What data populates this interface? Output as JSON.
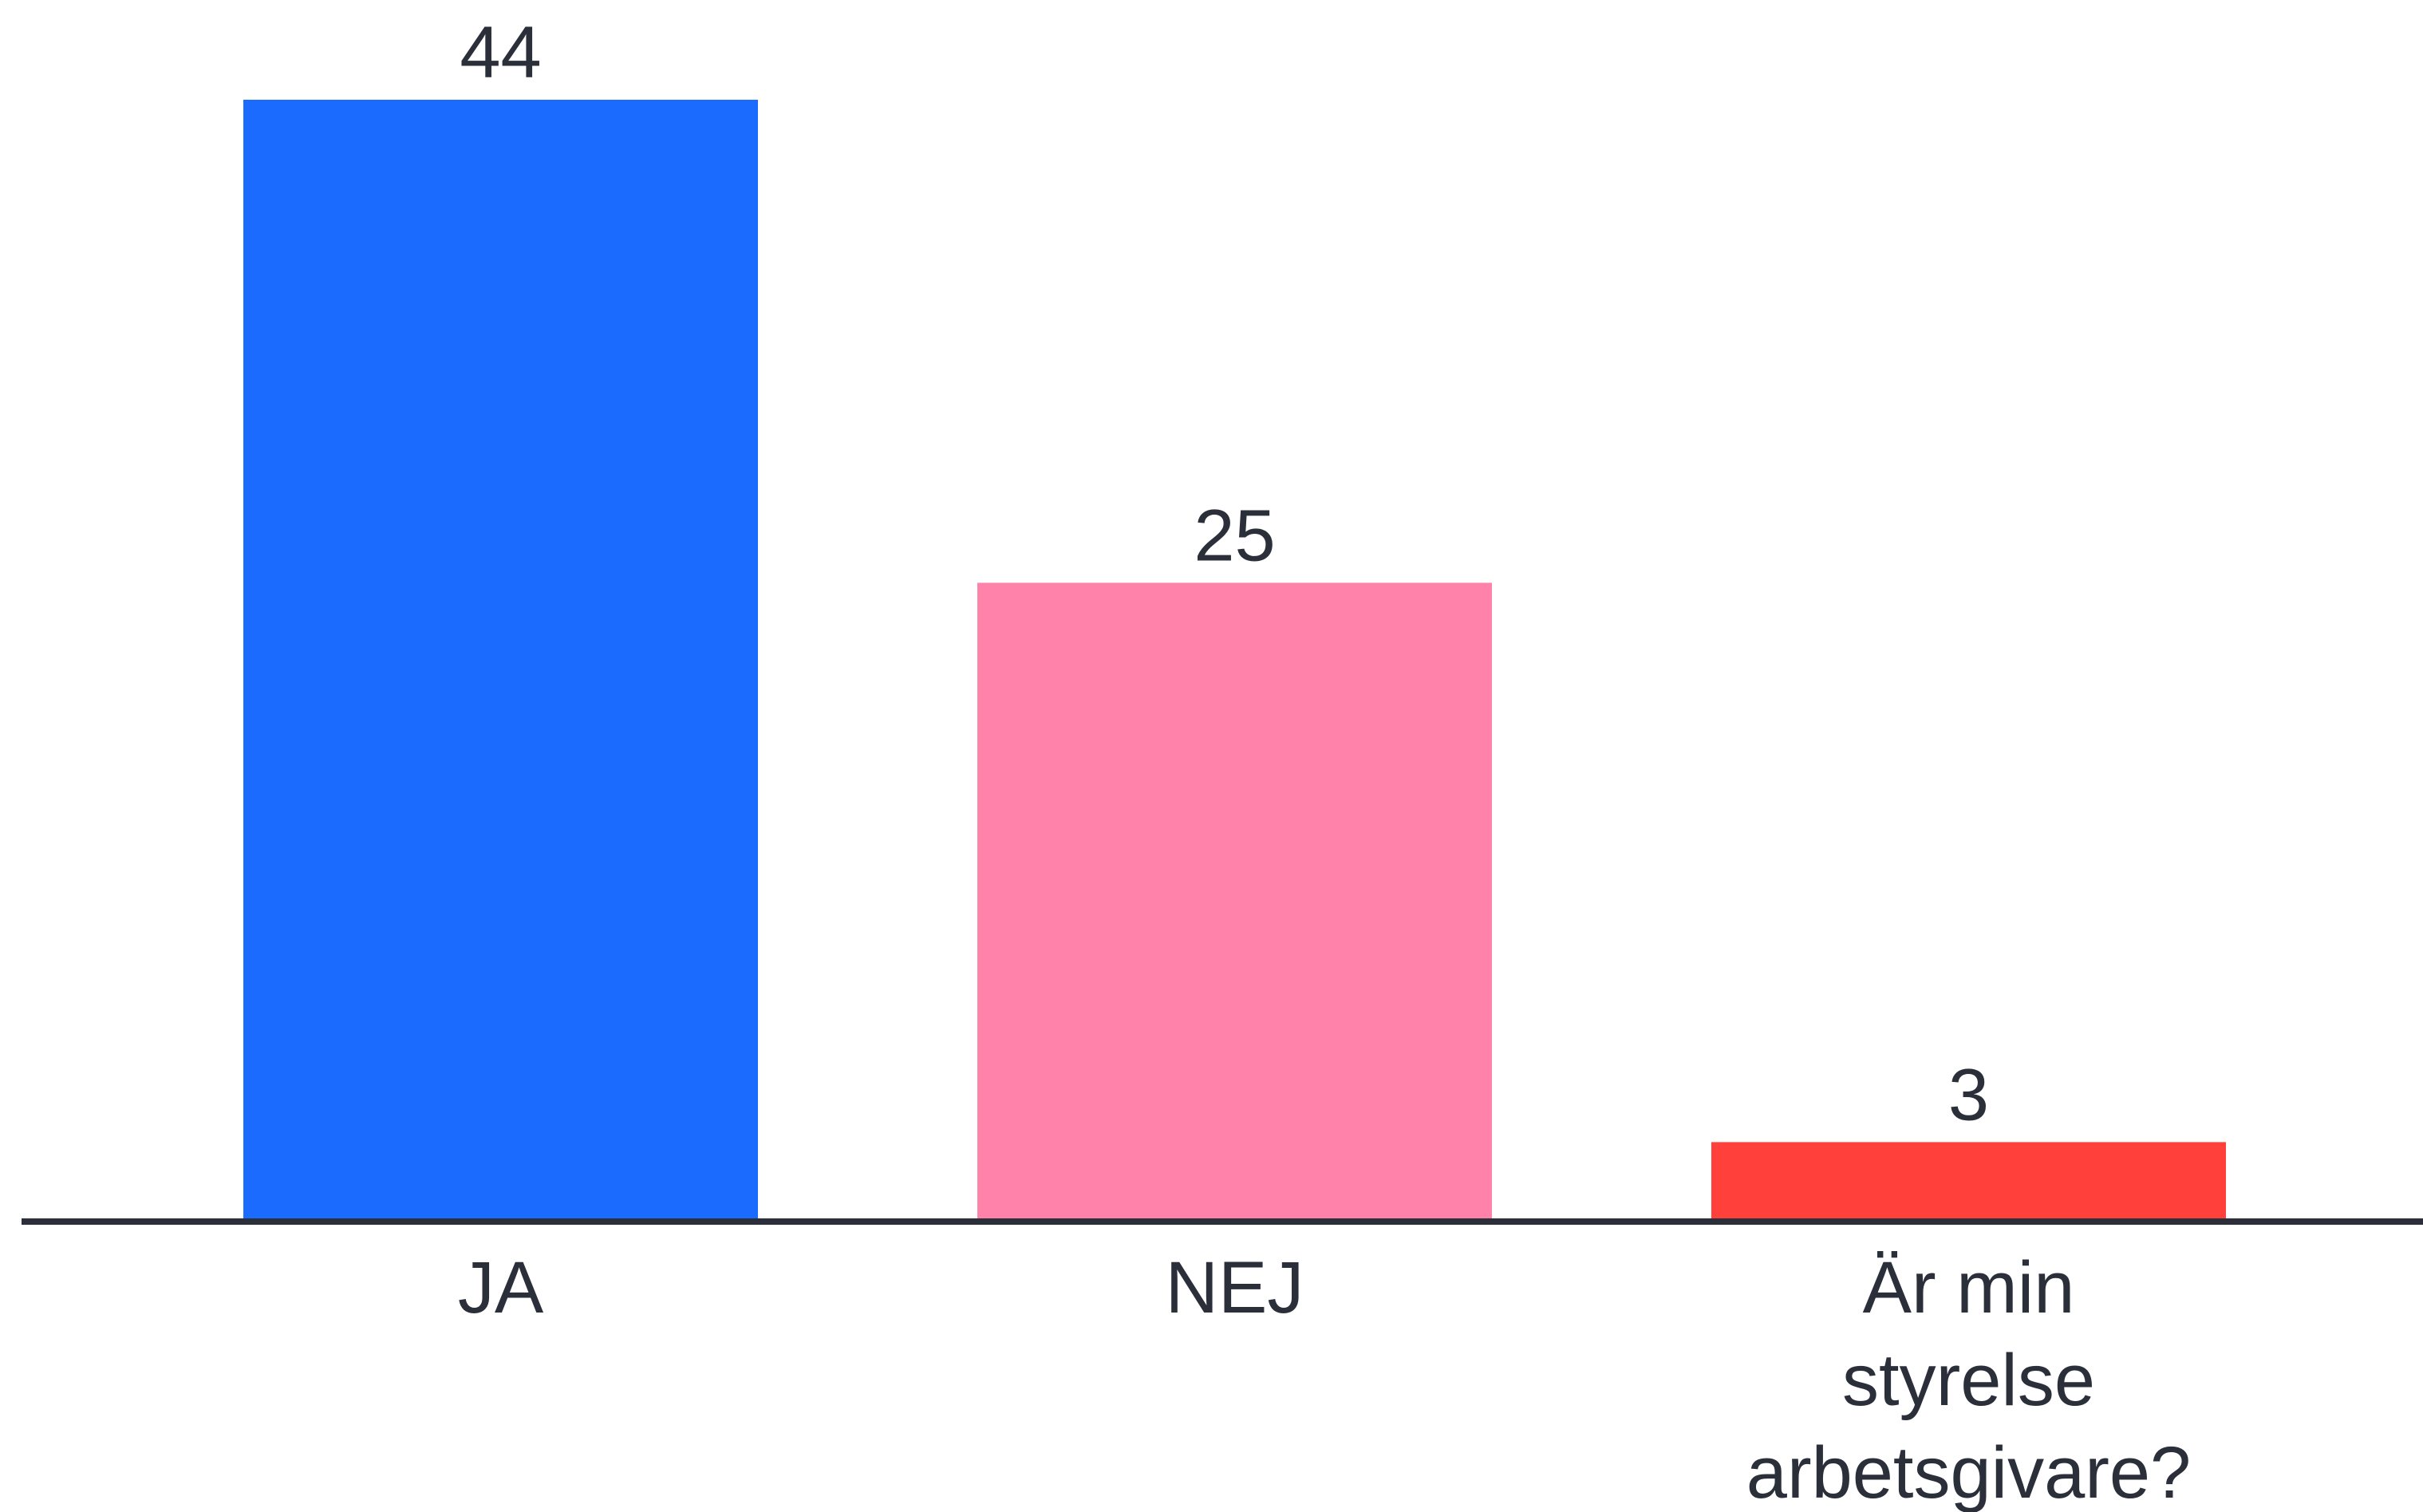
{
  "chart_data": {
    "type": "bar",
    "categories": [
      "JA",
      "NEJ",
      "Är min styrelse arbetsgivare?"
    ],
    "category_lines": [
      [
        "JA"
      ],
      [
        "NEJ"
      ],
      [
        "Är min",
        "styrelse",
        "arbetsgivare?"
      ]
    ],
    "values": [
      44,
      25,
      3
    ],
    "value_labels": [
      "44",
      "25",
      "3"
    ],
    "colors": [
      "#1c6bff",
      "#ff82aa",
      "#ff403b"
    ],
    "ylim": [
      0,
      44
    ],
    "grid": false,
    "legend": "none",
    "axis_color": "#2b2f3a"
  }
}
